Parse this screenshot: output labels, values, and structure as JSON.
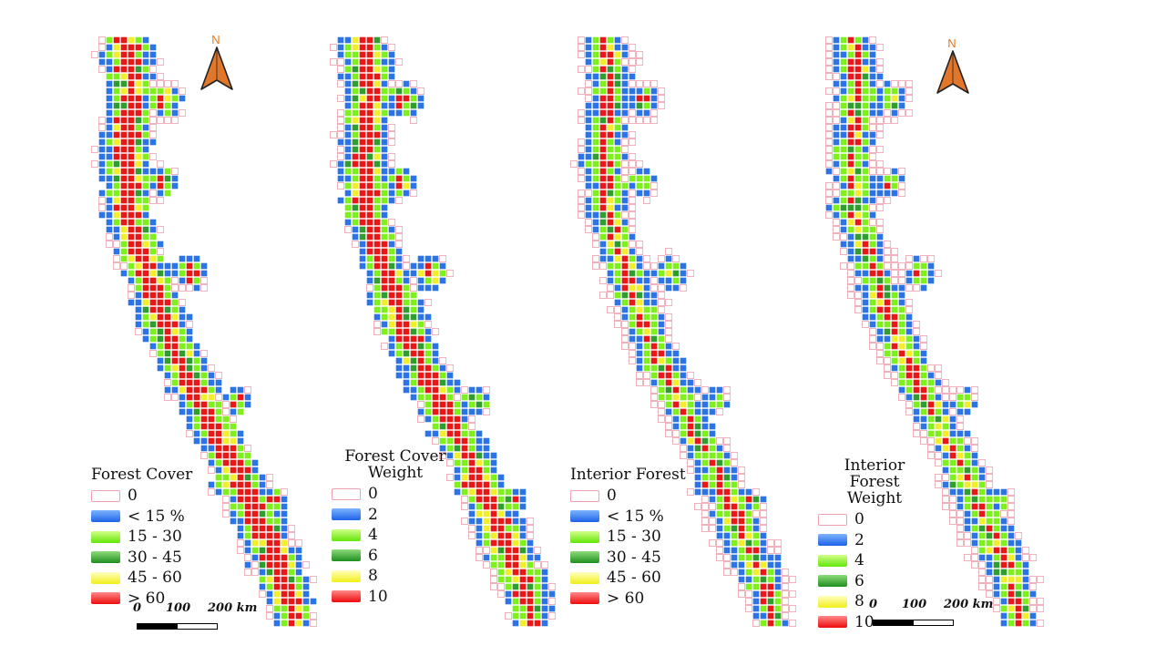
{
  "north_letter": "N",
  "scale": {
    "ticks": [
      "0",
      "100",
      "200 km"
    ]
  },
  "palette": {
    "0": "#ffffff",
    "1": "#2c74e6",
    "2": "#7ef01c",
    "3": "#2e9d2e",
    "4": "#f2ee2a",
    "5": "#e81818",
    "empty_border": "#f0a0b0",
    "cell_border": "#ffffff"
  },
  "panels": [
    {
      "id": "forest-cover",
      "legend": {
        "title": [
          "Forest Cover"
        ],
        "items": [
          {
            "label": "0"
          },
          {
            "label": "< 15 %"
          },
          {
            "label": "15 - 30"
          },
          {
            "label": "30 - 45"
          },
          {
            "label": "45 - 60"
          },
          {
            "label": "> 60"
          }
        ]
      },
      "has_north": true,
      "has_scale": true
    },
    {
      "id": "forest-cover-weight",
      "legend": {
        "title": [
          "Forest Cover",
          "Weight"
        ],
        "items": [
          {
            "label": "0"
          },
          {
            "label": "2"
          },
          {
            "label": "4"
          },
          {
            "label": "6"
          },
          {
            "label": "8"
          },
          {
            "label": "10"
          }
        ]
      },
      "has_north": false,
      "has_scale": false
    },
    {
      "id": "interior-forest",
      "legend": {
        "title": [
          "Interior Forest"
        ],
        "items": [
          {
            "label": "0"
          },
          {
            "label": "< 15 %"
          },
          {
            "label": "15 - 30"
          },
          {
            "label": "30 - 45"
          },
          {
            "label": "45 - 60"
          },
          {
            "label": "> 60"
          }
        ]
      },
      "has_north": false,
      "has_scale": false
    },
    {
      "id": "interior-forest-weight",
      "legend": {
        "title": [
          "Interior Forest",
          "Weight"
        ],
        "items": [
          {
            "label": "0"
          },
          {
            "label": "2"
          },
          {
            "label": "4"
          },
          {
            "label": "6"
          },
          {
            "label": "8"
          },
          {
            "label": "10"
          }
        ]
      },
      "has_north": true,
      "has_scale": true
    }
  ]
}
